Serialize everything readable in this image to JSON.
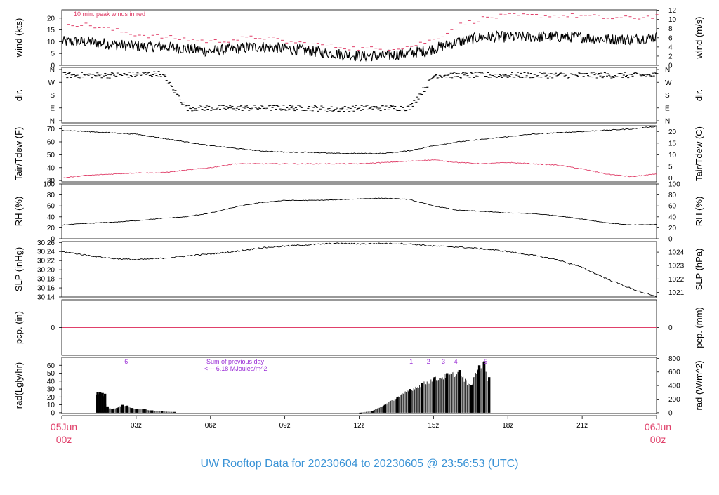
{
  "chart_data": {
    "type": "line",
    "title": "UW Rooftop Data for 20230604  to  20230605 @ 23:56:53  (UTC)",
    "x_axis": {
      "range_hours": [
        0,
        24
      ],
      "ticks": [
        {
          "hour": 3,
          "label": "03z"
        },
        {
          "hour": 6,
          "label": "06z"
        },
        {
          "hour": 9,
          "label": "09z"
        },
        {
          "hour": 12,
          "label": "12z"
        },
        {
          "hour": 15,
          "label": "15z"
        },
        {
          "hour": 18,
          "label": "18z"
        },
        {
          "hour": 21,
          "label": "21z"
        }
      ],
      "start_date": "05Jun",
      "start_time": "00z",
      "end_date": "06Jun",
      "end_time": "00z"
    },
    "panels": [
      {
        "id": "wind",
        "left_label": "wind (kts)",
        "right_label": "wind (m/s)",
        "left_ticks": [
          0,
          5,
          10,
          15,
          20
        ],
        "right_ticks": [
          0,
          2,
          4,
          6,
          8,
          10,
          12
        ],
        "annotation": "10 min. peak winds in red",
        "series": [
          {
            "name": "wind speed",
            "color": "#000000",
            "x": [
              0,
              1,
              2,
              3,
              4,
              5,
              6,
              7,
              8,
              9,
              10,
              11,
              12,
              13,
              14,
              15,
              16,
              17,
              18,
              19,
              20,
              21,
              22,
              23,
              24
            ],
            "y": [
              10,
              10,
              9,
              8,
              8,
              7,
              6,
              7,
              8,
              7,
              6,
              5,
              4,
              4,
              5,
              7,
              10,
              12,
              12,
              12,
              12,
              12,
              11,
              11,
              12
            ]
          },
          {
            "name": "peak wind",
            "color": "#e0406a",
            "x": [
              0,
              1,
              2,
              3,
              4,
              5,
              6,
              7,
              8,
              9,
              10,
              11,
              12,
              13,
              14,
              15,
              16,
              17,
              18,
              19,
              20,
              21,
              22,
              23,
              24
            ],
            "y": [
              18,
              17,
              15,
              13,
              12,
              11,
              10,
              11,
              12,
              10,
              9,
              8,
              7,
              7,
              8,
              11,
              17,
              20,
              21,
              21,
              21,
              21,
              20,
              20,
              21
            ]
          }
        ]
      },
      {
        "id": "dir",
        "left_label": "dir.",
        "right_label": "dir.",
        "categories": [
          "N",
          "E",
          "S",
          "W",
          "N"
        ],
        "series": [
          {
            "name": "direction",
            "color": "#000000",
            "x": [
              0,
              2,
              4,
              5,
              6,
              8,
              10,
              11,
              12,
              13,
              14,
              15,
              16,
              18,
              20,
              22,
              24
            ],
            "y": [
              320,
              320,
              330,
              90,
              90,
              90,
              90,
              80,
              90,
              90,
              90,
              320,
              320,
              320,
              320,
              320,
              320
            ]
          }
        ]
      },
      {
        "id": "temp",
        "left_label": "Tair/Tdew (F)",
        "right_label": "Tair/Tdew (C)",
        "left_ticks": [
          30,
          40,
          50,
          60,
          70
        ],
        "right_ticks": [
          0,
          5,
          10,
          15,
          20
        ],
        "series": [
          {
            "name": "Tair",
            "color": "#000000",
            "x": [
              0,
              1,
              2,
              3,
              4,
              5,
              6,
              7,
              8,
              9,
              10,
              11,
              12,
              13,
              14,
              15,
              16,
              17,
              18,
              19,
              20,
              21,
              22,
              23,
              24
            ],
            "y": [
              69,
              68,
              67,
              66,
              63,
              60,
              57,
              55,
              53,
              52,
              52,
              51,
              51,
              51,
              53,
              57,
              60,
              62,
              64,
              66,
              67,
              68,
              69,
              70,
              72
            ]
          },
          {
            "name": "Tdew",
            "color": "#e0406a",
            "x": [
              0,
              1,
              2,
              3,
              4,
              5,
              6,
              7,
              8,
              9,
              10,
              11,
              12,
              13,
              14,
              15,
              16,
              17,
              18,
              19,
              20,
              21,
              22,
              23,
              24
            ],
            "y": [
              32,
              34,
              35,
              36,
              36,
              38,
              40,
              43,
              43,
              43,
              43,
              43,
              43,
              44,
              45,
              46,
              44,
              43,
              44,
              43,
              42,
              39,
              35,
              33,
              35
            ]
          }
        ]
      },
      {
        "id": "rh",
        "left_label": "RH (%)",
        "right_label": "RH (%)",
        "left_ticks": [
          0,
          20,
          40,
          60,
          80,
          100
        ],
        "right_ticks": [
          0,
          20,
          40,
          60,
          80,
          100
        ],
        "series": [
          {
            "name": "RH",
            "color": "#000000",
            "x": [
              0,
              1,
              2,
              3,
              4,
              5,
              6,
              7,
              8,
              9,
              10,
              11,
              12,
              13,
              14,
              15,
              16,
              17,
              18,
              19,
              20,
              21,
              22,
              23,
              24
            ],
            "y": [
              25,
              28,
              30,
              33,
              37,
              40,
              47,
              58,
              66,
              70,
              70,
              71,
              73,
              74,
              72,
              60,
              52,
              50,
              47,
              46,
              42,
              36,
              29,
              25,
              26
            ]
          }
        ]
      },
      {
        "id": "slp",
        "left_label": "SLP (inHg)",
        "right_label": "SLP (hPa)",
        "left_ticks": [
          30.14,
          30.16,
          30.18,
          30.2,
          30.22,
          30.24,
          30.26
        ],
        "right_ticks": [
          1021,
          1022,
          1023,
          1024
        ],
        "series": [
          {
            "name": "SLP",
            "color": "#000000",
            "x": [
              0,
              1,
              2,
              3,
              4,
              5,
              6,
              7,
              8,
              9,
              10,
              11,
              12,
              13,
              14,
              15,
              16,
              17,
              18,
              19,
              20,
              21,
              22,
              23,
              24
            ],
            "y": [
              30.24,
              30.232,
              30.225,
              30.222,
              30.225,
              30.23,
              30.235,
              30.24,
              30.248,
              30.252,
              30.255,
              30.258,
              30.257,
              30.258,
              30.257,
              30.252,
              30.25,
              30.246,
              30.24,
              30.232,
              30.222,
              30.205,
              30.18,
              30.158,
              30.14
            ]
          }
        ]
      },
      {
        "id": "pcp",
        "left_label": "pcp. (in)",
        "right_label": "pcp. (mm)",
        "left_ticks": [
          0
        ],
        "right_ticks": [
          0
        ],
        "series": [
          {
            "name": "precip",
            "color": "#e0406a",
            "x": [
              0,
              24
            ],
            "y": [
              0,
              0
            ]
          }
        ]
      },
      {
        "id": "rad",
        "type": "bar",
        "left_label": "rad(Lgly/hr)",
        "right_label": "rad (W/m^2)",
        "left_ticks": [
          0,
          10,
          20,
          30,
          40,
          50,
          60
        ],
        "right_ticks": [
          0,
          200,
          400,
          600,
          800
        ],
        "annotations": {
          "sum_line1": "Sum of previous day",
          "sum_line2": "<--- 6.18 MJoules/m^2",
          "markers": [
            {
              "hour": 2.6,
              "label": "6"
            },
            {
              "hour": 14.1,
              "label": "1"
            },
            {
              "hour": 14.8,
              "label": "2"
            },
            {
              "hour": 15.4,
              "label": "3"
            },
            {
              "hour": 15.9,
              "label": "4"
            },
            {
              "hour": 17.1,
              "label": "5"
            }
          ]
        },
        "series": [
          {
            "name": "solar radiation",
            "color": "#000000",
            "x": [
              1.4,
              1.5,
              1.6,
              1.7,
              1.8,
              2.0,
              2.2,
              2.4,
              2.6,
              2.8,
              3.0,
              3.3,
              3.6,
              4.0,
              4.5,
              12.0,
              12.5,
              13.0,
              13.5,
              14.0,
              14.5,
              15.0,
              15.5,
              16.0,
              16.5,
              16.8,
              17.0,
              17.2
            ],
            "y": [
              26,
              26,
              25,
              24,
              8,
              5,
              6,
              10,
              9,
              6,
              5,
              5,
              3,
              2,
              1,
              0,
              2,
              10,
              20,
              30,
              38,
              45,
              50,
              54,
              35,
              60,
              65,
              45
            ]
          }
        ]
      }
    ]
  }
}
